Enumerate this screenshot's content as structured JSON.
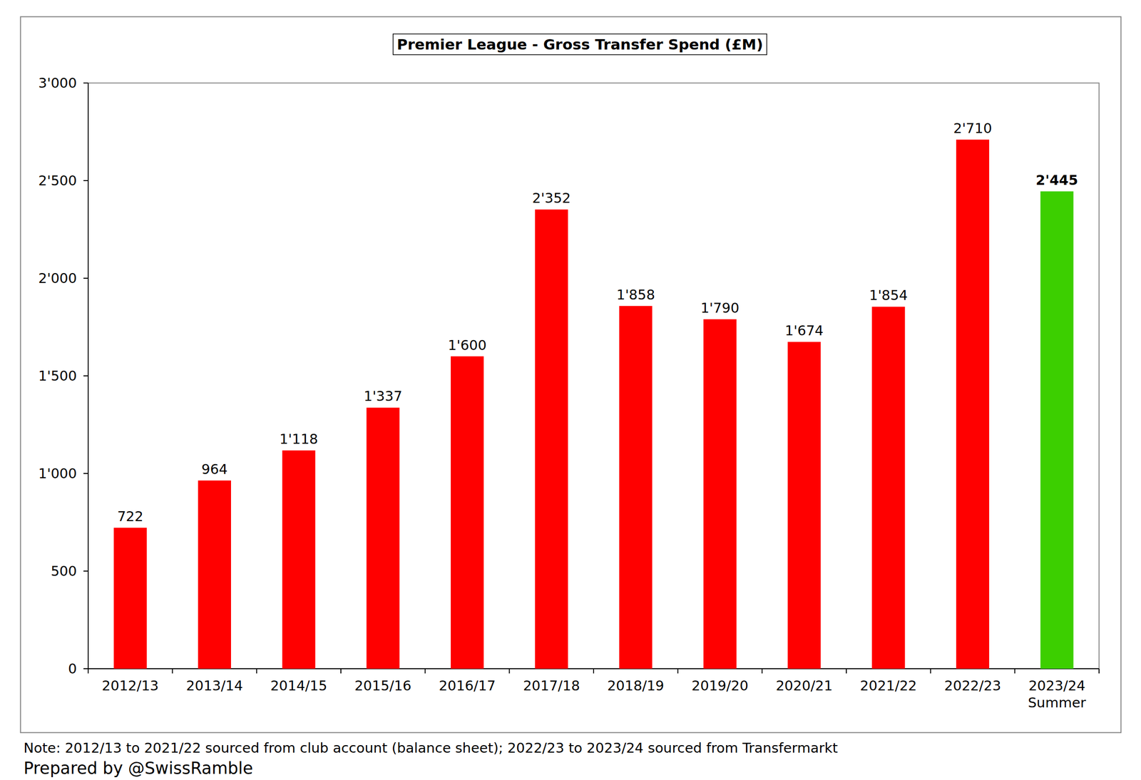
{
  "chart_data": {
    "type": "bar",
    "title": "Premier League - Gross Transfer Spend (£M)",
    "categories": [
      "2012/13",
      "2013/14",
      "2014/15",
      "2015/16",
      "2016/17",
      "2017/18",
      "2018/19",
      "2019/20",
      "2020/21",
      "2021/22",
      "2022/23",
      "2023/24 Summer"
    ],
    "values": [
      722,
      964,
      1118,
      1337,
      1600,
      2352,
      1858,
      1790,
      1674,
      1854,
      2710,
      2445
    ],
    "value_labels": [
      "722",
      "964",
      "1'118",
      "1'337",
      "1'600",
      "2'352",
      "1'858",
      "1'790",
      "1'674",
      "1'854",
      "2'710",
      "2'445"
    ],
    "colors": [
      "#ff0000",
      "#ff0000",
      "#ff0000",
      "#ff0000",
      "#ff0000",
      "#ff0000",
      "#ff0000",
      "#ff0000",
      "#ff0000",
      "#ff0000",
      "#ff0000",
      "#3ccf00"
    ],
    "ylim": [
      0,
      3000
    ],
    "yticks": [
      {
        "value": 0,
        "label": "0"
      },
      {
        "value": 500,
        "label": "500"
      },
      {
        "value": 1000,
        "label": "1'000"
      },
      {
        "value": 1500,
        "label": "1'500"
      },
      {
        "value": 2000,
        "label": "2'000"
      },
      {
        "value": 2500,
        "label": "2'500"
      },
      {
        "value": 3000,
        "label": "3'000"
      }
    ],
    "grid": false,
    "data_labels": true,
    "annotations": [
      "Note: 2012/13 to 2021/22 sourced from club account (balance sheet); 2022/23 to 2023/24 sourced from Transfermarkt",
      "Prepared by @SwissRamble"
    ]
  }
}
